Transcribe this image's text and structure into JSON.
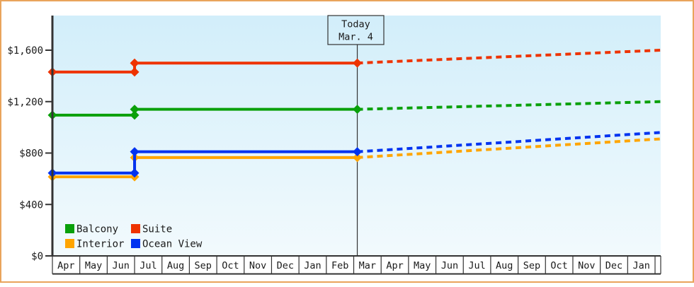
{
  "colors": {
    "frame_border": "#e9a45c",
    "plot_bg_top": "#d2eefa",
    "plot_bg_bottom": "#f2fafd",
    "axis": "#333333",
    "text": "#1a1a1a"
  },
  "y_axis": {
    "labels": [
      "$0",
      "$400",
      "$800",
      "$1,200",
      "$1,600"
    ],
    "values": [
      0,
      400,
      800,
      1200,
      1600
    ]
  },
  "legend": {
    "items": [
      {
        "label": "Balcony",
        "color": "#0aa00a"
      },
      {
        "label": "Suite",
        "color": "#ee3300"
      },
      {
        "label": "Interior",
        "color": "#ffa500"
      },
      {
        "label": "Ocean View",
        "color": "#0033f0"
      }
    ]
  },
  "chart_data": {
    "type": "line",
    "title": "",
    "xlabel": "",
    "ylabel": "",
    "grid": false,
    "legend_position": "inside-bottom-left",
    "ylim": [
      0,
      1870
    ],
    "y_ticks": [
      0,
      400,
      800,
      1200,
      1600
    ],
    "x_categories": [
      "Apr",
      "May",
      "Jun",
      "Jul",
      "Aug",
      "Sep",
      "Oct",
      "Nov",
      "Dec",
      "Jan",
      "Feb",
      "Mar",
      "Apr",
      "May",
      "Jun",
      "Jul",
      "Aug",
      "Sep",
      "Oct",
      "Nov",
      "Dec",
      "Jan"
    ],
    "x_note": "22 consecutive months; solid = price history, dashed = forecast",
    "today": {
      "label": "Today",
      "date": "Mar. 4",
      "month_fraction": 11.13
    },
    "price_jump_month_fraction": 3,
    "series": [
      {
        "name": "Interior",
        "color": "#ffa500",
        "initial_price": 615,
        "price_at_today": 765,
        "forecast_end_price": 910
      },
      {
        "name": "Ocean View",
        "color": "#0033f0",
        "initial_price": 645,
        "price_at_today": 810,
        "forecast_end_price": 960
      },
      {
        "name": "Balcony",
        "color": "#0aa00a",
        "initial_price": 1095,
        "price_at_today": 1140,
        "forecast_end_price": 1200
      },
      {
        "name": "Suite",
        "color": "#ee3300",
        "initial_price": 1430,
        "price_at_today": 1500,
        "forecast_end_price": 1600
      }
    ]
  }
}
